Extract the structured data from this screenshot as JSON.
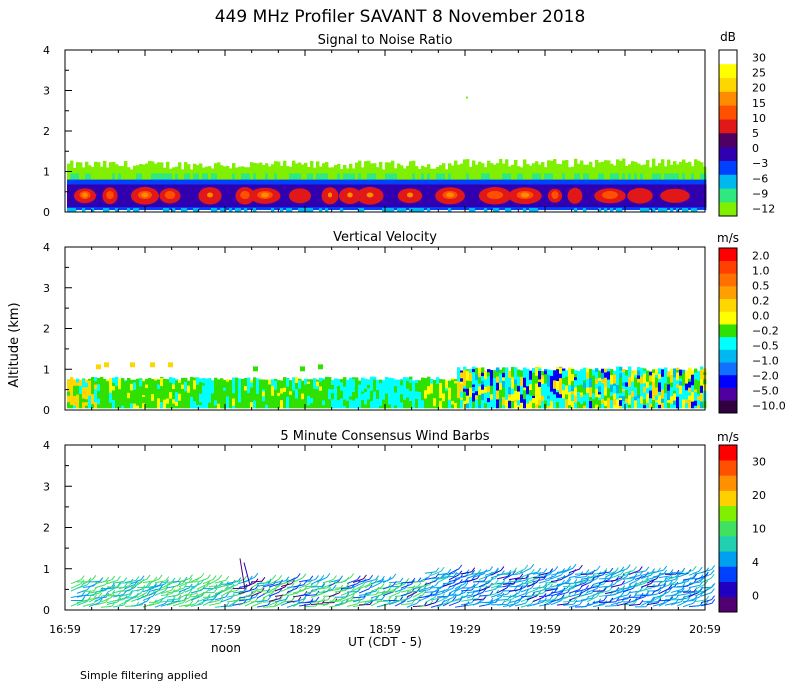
{
  "title": "449 MHz Profiler SAVANT  8 November 2018",
  "ylabel": "Altitude (km)",
  "xlabel": "UT  (CDT - 5)",
  "noon_label": "noon",
  "footer": "Simple filtering applied",
  "x_ticks": [
    "16:59",
    "17:29",
    "17:59",
    "18:29",
    "18:59",
    "19:29",
    "19:59",
    "20:29",
    "20:59"
  ],
  "colors": {
    "snr": [
      "#80f000",
      "#30e880",
      "#00b8f0",
      "#0040ff",
      "#3000b0",
      "#500060",
      "#e01818",
      "#ff5000",
      "#ff8c00",
      "#ffd700",
      "#ffff00",
      "#ffffff"
    ],
    "vv": [
      "#300040",
      "#5000a0",
      "#0000ff",
      "#1070ff",
      "#00b8f0",
      "#00ffff",
      "#30e000",
      "#ffff00",
      "#ffd700",
      "#ffa000",
      "#ff7000",
      "#ff4000",
      "#ff0000"
    ],
    "wind": [
      "#500070",
      "#2000c0",
      "#0040ff",
      "#00a0f0",
      "#20d0b0",
      "#40e060",
      "#80f000",
      "#ffd000",
      "#ff9000",
      "#ff5000",
      "#ff0000"
    ]
  },
  "chart_data": [
    {
      "type": "heatmap",
      "title": "Signal to Noise Ratio",
      "unit": "dB",
      "colorbar_ticks": [
        "30",
        "25",
        "20",
        "15",
        "10",
        "5",
        "0",
        "−3",
        "−6",
        "−9",
        "−12"
      ],
      "x_range": [
        "16:59",
        "20:59"
      ],
      "ylim": [
        0,
        4
      ],
      "y_ticks": [
        "0",
        "1",
        "2",
        "3",
        "4"
      ]
    },
    {
      "type": "heatmap",
      "title": "Vertical Velocity",
      "unit": "m/s",
      "colorbar_ticks": [
        "2.0",
        "1.0",
        "0.5",
        "0.2",
        "0.0",
        "−0.2",
        "−0.5",
        "−1.0",
        "−2.0",
        "−5.0",
        "−10.0"
      ],
      "x_range": [
        "16:59",
        "20:59"
      ],
      "ylim": [
        0,
        4
      ],
      "y_ticks": [
        "0",
        "1",
        "2",
        "3",
        "4"
      ]
    },
    {
      "type": "scatter",
      "title": "5 Minute Consensus Wind Barbs",
      "unit": "m/s",
      "colorbar_ticks": [
        "30",
        "20",
        "10",
        "4",
        "0"
      ],
      "x_range": [
        "16:59",
        "20:59"
      ],
      "ylim": [
        0,
        4
      ],
      "y_ticks": [
        "0",
        "1",
        "2",
        "3",
        "4"
      ]
    }
  ]
}
